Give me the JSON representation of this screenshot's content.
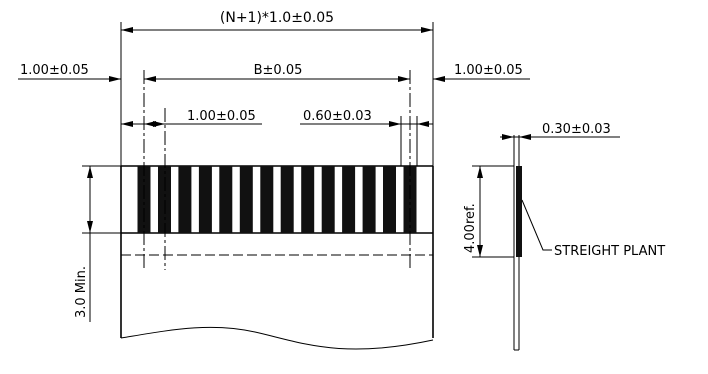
{
  "labels": {
    "overall_width": "(N+1)*1.0±0.05",
    "left_margin": "1.00±0.05",
    "pin_span": "B±0.05",
    "right_margin": "1.00±0.05",
    "pitch": "1.00±0.05",
    "pin_width": "0.60±0.03",
    "thickness": "0.30±0.03",
    "stiffener_length": "4.00ref.",
    "min_length": "3.0 Min.",
    "plating_note": "STREIGHT PLANT"
  },
  "pins": {
    "count": 14
  },
  "colors": {
    "line": "#000000",
    "pin_fill": "#111111",
    "background": "#ffffff"
  }
}
